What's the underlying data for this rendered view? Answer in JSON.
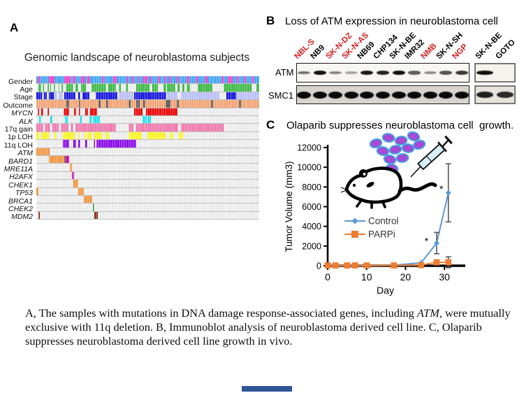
{
  "figure": {
    "panelA": {
      "label": "A",
      "title": "Genomic landscape of neuroblastoma subjects"
    },
    "panelB": {
      "label": "B",
      "title": "Loss of ATM expression in neuroblastoma cell"
    },
    "panelC": {
      "label": "C",
      "title": "Olaparib suppresses neuroblastoma cell  growth."
    },
    "caption": {
      "part1": "A, The samples with mutations in DNA damage response-associated genes, including ",
      "italic": "ATM",
      "part2": ", were mutually exclusive with 11q deletion. B, Immunoblot analysis of neuroblastoma derived cell line. C, Olaparib suppresses neuroblastoma derived cell line growth in vivo."
    }
  },
  "oncoprint": {
    "rows": [
      {
        "label": "Gender",
        "italic": false,
        "base": "#3fa3f0",
        "color": "#ef3dc2",
        "segs": [
          [
            0.5,
            1.5
          ],
          [
            5.5,
            8
          ],
          [
            12.5,
            15.5
          ],
          [
            16.2,
            17.5
          ],
          [
            20,
            21.5
          ],
          [
            23,
            24
          ],
          [
            29.5,
            30.5
          ],
          [
            34.5,
            36
          ],
          [
            40.4,
            41.2
          ],
          [
            42.7,
            43.6
          ],
          [
            45.3,
            46.1
          ],
          [
            48,
            50
          ],
          [
            51.1,
            51.8
          ],
          [
            54.7,
            55.4
          ],
          [
            57.3,
            58.1
          ],
          [
            59.7,
            60.6
          ],
          [
            63.1,
            63.8
          ],
          [
            67.3,
            68.8
          ],
          [
            71.5,
            72.3
          ],
          [
            75.4,
            76.8
          ],
          [
            83,
            84
          ],
          [
            86,
            88
          ],
          [
            90,
            91
          ],
          [
            93,
            94.2
          ],
          [
            96.5,
            97.5
          ]
        ]
      },
      {
        "label": "Age",
        "italic": false,
        "base": null,
        "color": "#3bb845",
        "segs": [
          [
            0.8,
            2.1
          ],
          [
            2.9,
            3.6
          ],
          [
            5,
            5.7
          ],
          [
            6.2,
            6.6
          ],
          [
            7.8,
            8.5
          ],
          [
            9.9,
            10.4
          ],
          [
            11.4,
            11.9
          ],
          [
            13.5,
            16.6
          ],
          [
            17.7,
            18.7
          ],
          [
            20.2,
            22.3
          ],
          [
            24.9,
            31.2
          ],
          [
            32.2,
            35.8
          ],
          [
            36.9,
            37.9
          ],
          [
            40,
            41
          ],
          [
            44.7,
            50.9
          ],
          [
            51.9,
            54.5
          ],
          [
            56.9,
            58.2
          ],
          [
            58.7,
            62.3
          ],
          [
            63.3,
            64.4
          ],
          [
            65.4,
            66.5
          ],
          [
            67.3,
            69.1
          ],
          [
            72.5,
            78.9
          ],
          [
            84.1,
            96.6
          ],
          [
            98.6,
            100
          ]
        ]
      },
      {
        "label": "Stage",
        "italic": false,
        "base": null,
        "color": "#1414dc",
        "segs": [
          [
            0,
            2.6
          ],
          [
            3.6,
            4.7
          ],
          [
            5.7,
            7.8
          ],
          [
            12.5,
            17.7
          ],
          [
            18.7,
            19.9
          ],
          [
            20.8,
            23.9
          ],
          [
            26.8,
            36.3
          ],
          [
            44,
            58.4
          ],
          [
            85.2,
            89.8
          ],
          [
            2.6,
            3.6,
            "#b7bef6"
          ],
          [
            7.8,
            9.3,
            "#b7bef6"
          ],
          [
            9.9,
            11.9,
            "#b7bef6"
          ],
          [
            36.9,
            43.6,
            "#b7bef6"
          ],
          [
            58.6,
            63.4,
            "#b7bef6"
          ],
          [
            65,
            82,
            "#b7bef6"
          ],
          [
            89.8,
            100,
            "#b7bef6"
          ]
        ]
      },
      {
        "label": "Outcome",
        "italic": false,
        "base": "#f2a273",
        "color": "#5a5a5a",
        "segs": [
          [
            13.5,
            14.7
          ],
          [
            19,
            19.7
          ],
          [
            28,
            28.9
          ],
          [
            31.2,
            32.4
          ],
          [
            41.5,
            42.2
          ],
          [
            44.7,
            46.4
          ],
          [
            48,
            49
          ],
          [
            58,
            60.2
          ],
          [
            63.1,
            63.9
          ],
          [
            78.4,
            79.4
          ],
          [
            90.9,
            91.9
          ]
        ]
      },
      {
        "label": "MYCN",
        "italic": true,
        "base": null,
        "color": "#e80000",
        "segs": [
          [
            0.5,
            1.3
          ],
          [
            2.3,
            3.2
          ],
          [
            5,
            5.5
          ],
          [
            12.2,
            14.8
          ],
          [
            16.8,
            18
          ],
          [
            19.2,
            19.8
          ],
          [
            21.8,
            23.2
          ],
          [
            24,
            27.3
          ],
          [
            43.8,
            47.8
          ],
          [
            49.3,
            63.4
          ]
        ]
      },
      {
        "label": "ALK",
        "italic": true,
        "base": null,
        "color": "#22dff0",
        "segs": [
          [
            1.2,
            2.1
          ],
          [
            6.2,
            7.3
          ],
          [
            13,
            14
          ],
          [
            19.5,
            20.3
          ],
          [
            23.9,
            24.9
          ],
          [
            25.4,
            28.5
          ],
          [
            47.8,
            49.4
          ],
          [
            49.8,
            51.5
          ]
        ]
      },
      {
        "label": "17q gain",
        "italic": false,
        "base": null,
        "color": "#ef76ab",
        "segs": [
          [
            0,
            3.1
          ],
          [
            3.9,
            6.2
          ],
          [
            7.1,
            9.9
          ],
          [
            10.9,
            14.5
          ],
          [
            15.4,
            16.6
          ],
          [
            17.4,
            35.8
          ],
          [
            41.3,
            43.6
          ],
          [
            44.5,
            63.5
          ],
          [
            65,
            84
          ]
        ]
      },
      {
        "label": "1p LOH",
        "italic": false,
        "base": null,
        "color": "#fbf420",
        "segs": [
          [
            0,
            1.2
          ],
          [
            2.1,
            5.7
          ],
          [
            7.8,
            8.8
          ],
          [
            11.9,
            17.1
          ],
          [
            19.2,
            19.9
          ],
          [
            21.3,
            22
          ],
          [
            22.6,
            24.9
          ],
          [
            26,
            29.6
          ],
          [
            30.9,
            32.7
          ],
          [
            41.3,
            47.4
          ],
          [
            49.8,
            58.1
          ],
          [
            59.9,
            61.5
          ],
          [
            63.8,
            65.8
          ]
        ]
      },
      {
        "label": "11q LOH",
        "italic": false,
        "base": null,
        "color": "#8806e8",
        "segs": [
          [
            12,
            14.6
          ],
          [
            16.7,
            17.9
          ],
          [
            18.8,
            19.8
          ],
          [
            21.9,
            22.9
          ],
          [
            25.8,
            26.3
          ],
          [
            27,
            44.8
          ]
        ]
      },
      {
        "label": "ATM",
        "italic": true,
        "base": null,
        "color": "#f0953e",
        "segs": [
          [
            0,
            5.9
          ]
        ]
      },
      {
        "label": "BARD1",
        "italic": true,
        "base": null,
        "color": "#f0953e",
        "segs": [
          [
            5.7,
            12.5
          ],
          [
            12.5,
            13,
            "#2ba12b"
          ],
          [
            13,
            14.6,
            "#c4009e"
          ]
        ]
      },
      {
        "label": "MRE11A",
        "italic": true,
        "base": null,
        "color": "#f0953e",
        "segs": [
          [
            14.9,
            16.1
          ]
        ]
      },
      {
        "label": "H2AFX",
        "italic": true,
        "base": null,
        "color": "#bf13b0",
        "segs": [
          [
            16.1,
            16.9
          ]
        ]
      },
      {
        "label": "CHEK1",
        "italic": true,
        "base": null,
        "color": "#f0953e",
        "segs": [
          [
            16.7,
            18.8
          ]
        ]
      },
      {
        "label": "TP53",
        "italic": true,
        "base": null,
        "color": "#f0953e",
        "segs": [
          [
            0,
            0.8
          ],
          [
            18.8,
            21.4
          ]
        ]
      },
      {
        "label": "BRCA1",
        "italic": true,
        "base": null,
        "color": "#f0953e",
        "segs": [
          [
            21.4,
            25
          ]
        ]
      },
      {
        "label": "CHEK2",
        "italic": true,
        "base": null,
        "color": "#2ba12b",
        "segs": [
          [
            25.3,
            25.9
          ]
        ]
      },
      {
        "label": "MDM2",
        "italic": true,
        "base": null,
        "color": "#8a3012",
        "segs": [
          [
            0.8,
            1.5
          ],
          [
            26,
            27.6
          ]
        ]
      }
    ]
  },
  "blot": {
    "row_labels": [
      "ATM",
      "SMC1"
    ],
    "red_label_color": "#d42020",
    "main_lanes": [
      {
        "name": "NBL-S",
        "red": true,
        "atm": 0.45,
        "smc1": 1
      },
      {
        "name": "NB9",
        "red": false,
        "atm": 0.95,
        "smc1": 1
      },
      {
        "name": "SK-N-DZ",
        "red": true,
        "atm": 0.35,
        "smc1": 1
      },
      {
        "name": "SK-N-AS",
        "red": true,
        "atm": 0.2,
        "smc1": 1
      },
      {
        "name": "NB69",
        "red": false,
        "atm": 0.9,
        "smc1": 1
      },
      {
        "name": "CHP134",
        "red": false,
        "atm": 0.85,
        "smc1": 1
      },
      {
        "name": "SK-N-BE",
        "red": false,
        "atm": 0.95,
        "smc1": 1
      },
      {
        "name": "IMR32",
        "red": false,
        "atm": 0.55,
        "smc1": 1
      },
      {
        "name": "NMB",
        "red": true,
        "atm": 0.3,
        "smc1": 1
      },
      {
        "name": "SK-N-SH",
        "red": false,
        "atm": 0.6,
        "smc1": 1
      },
      {
        "name": "NGP",
        "red": true,
        "atm": 0.75,
        "smc1": 1
      }
    ],
    "side_lanes": [
      {
        "name": "SK-N-BE",
        "red": false,
        "atm": 0.95,
        "smc1": 0.85
      },
      {
        "name": "GOTO",
        "red": false,
        "atm": 0,
        "smc1": 0.8
      }
    ]
  },
  "chart_data": {
    "type": "line",
    "title": "Olaparib suppresses neuroblastoma cell  growth.",
    "xlabel": "Day",
    "ylabel": "Tumor Volume (mm3)",
    "xlim": [
      0,
      35
    ],
    "ylim": [
      0,
      12000
    ],
    "xticks": [
      0,
      10,
      20,
      30
    ],
    "yticks": [
      0,
      2000,
      4000,
      6000,
      8000,
      10000,
      12000
    ],
    "grid": false,
    "legend_position": "middle-left",
    "series": [
      {
        "name": "Control",
        "color": "#5b9bd5",
        "marker": "diamond",
        "x": [
          0,
          2,
          5,
          7,
          10,
          17,
          24,
          28,
          31
        ],
        "y": [
          0,
          0,
          0,
          0,
          0,
          50,
          300,
          2300,
          7400
        ],
        "error_bars": [
          {
            "x": 28,
            "y": 2300,
            "err": 1080
          },
          {
            "x": 31,
            "y": 7400,
            "err": 2950
          }
        ]
      },
      {
        "name": "PARPi",
        "color": "#ed7d31",
        "marker": "square",
        "x": [
          0,
          2,
          5,
          7,
          10,
          17,
          24,
          28,
          31
        ],
        "y": [
          30,
          30,
          30,
          30,
          30,
          30,
          60,
          350,
          350
        ],
        "error_bars": [
          {
            "x": 31,
            "y": 350,
            "err": 550
          }
        ]
      }
    ],
    "annotations": [
      {
        "text": "*",
        "x": 25.4,
        "y": 2150
      },
      {
        "text": "*",
        "x": 29.2,
        "y": 7450
      }
    ]
  },
  "illustration": {
    "cell_fill": "#9b4fd8",
    "cell_stroke": "#46a8e0",
    "cell_nucleus": "#c93ad1",
    "syringe_fill": "#d8f0f7",
    "mouse_stroke": "#000000"
  }
}
